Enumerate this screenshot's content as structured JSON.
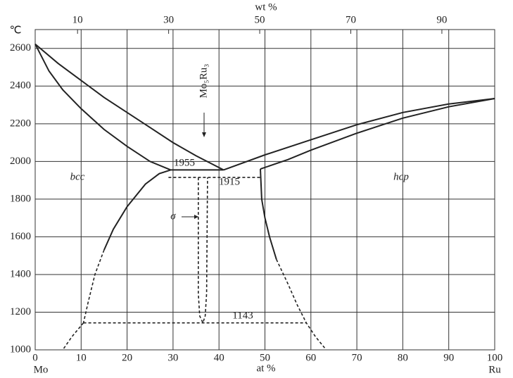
{
  "chart_data": {
    "type": "line",
    "x_label": "at %",
    "x2_label": "wt %",
    "y_label": "℃",
    "x_end_labels": [
      "Mo",
      "Ru"
    ],
    "phase_labels": [
      "bcc",
      "hcp",
      "σ",
      "Mo₅Ru₃"
    ],
    "xlim": [
      0,
      100
    ],
    "xticks": [
      0,
      10,
      20,
      30,
      40,
      50,
      60,
      70,
      80,
      90,
      100
    ],
    "x2lim": [
      0.7,
      101.6
    ],
    "x2ticks": [
      10,
      30,
      50,
      70,
      90
    ],
    "ylim": [
      1000,
      2700
    ],
    "yticks": [
      1000,
      1200,
      1400,
      1600,
      1800,
      2000,
      2200,
      2400,
      2600
    ],
    "grid": true,
    "color": "#222",
    "series": [
      {
        "x": [
          0,
          5,
          10,
          15,
          20,
          25,
          30,
          35,
          41
        ],
        "values": [
          2623,
          2520,
          2430,
          2340,
          2260,
          2180,
          2100,
          2030,
          1955
        ],
        "dashed": false
      },
      {
        "x": [
          0,
          3,
          6,
          10,
          15,
          20,
          25,
          29.5
        ],
        "values": [
          2623,
          2480,
          2380,
          2280,
          2170,
          2080,
          2000,
          1955
        ],
        "dashed": false
      },
      {
        "x": [
          29.5,
          27,
          24,
          20,
          17,
          15
        ],
        "values": [
          1955,
          1935,
          1880,
          1760,
          1640,
          1530
        ],
        "dashed": false
      },
      {
        "x": [
          15,
          13,
          11.5,
          10.5
        ],
        "values": [
          1530,
          1400,
          1250,
          1143
        ],
        "dashed": true
      },
      {
        "x": [
          10.5,
          8,
          6
        ],
        "values": [
          1143,
          1070,
          1000
        ],
        "dashed": true
      },
      {
        "x": [
          29.5,
          41
        ],
        "values": [
          1955,
          1955
        ],
        "dashed": false
      },
      {
        "x": [
          41,
          50,
          60,
          70,
          80,
          90,
          100
        ],
        "values": [
          1955,
          2035,
          2115,
          2195,
          2260,
          2305,
          2334
        ],
        "dashed": false
      },
      {
        "x": [
          49,
          55,
          60,
          70,
          80,
          90,
          100
        ],
        "values": [
          1960,
          2010,
          2060,
          2150,
          2230,
          2290,
          2334
        ],
        "dashed": false
      },
      {
        "x": [
          49,
          49.3,
          50,
          51,
          52.5
        ],
        "values": [
          1960,
          1800,
          1700,
          1600,
          1480
        ],
        "dashed": false
      },
      {
        "x": [
          52.5,
          55,
          57,
          59,
          61,
          63
        ],
        "values": [
          1480,
          1350,
          1240,
          1143,
          1070,
          1010
        ],
        "dashed": true
      },
      {
        "x": [
          29,
          49
        ],
        "values": [
          1915,
          1915
        ],
        "dashed": true
      },
      {
        "x": [
          35.5,
          35.5,
          35.8,
          36.5,
          37,
          37.3,
          37.5
        ],
        "values": [
          1915,
          1300,
          1180,
          1143,
          1180,
          1300,
          1915
        ],
        "dashed": true
      },
      {
        "x": [
          10.5,
          59
        ],
        "values": [
          1143,
          1143
        ],
        "dashed": true
      }
    ]
  }
}
